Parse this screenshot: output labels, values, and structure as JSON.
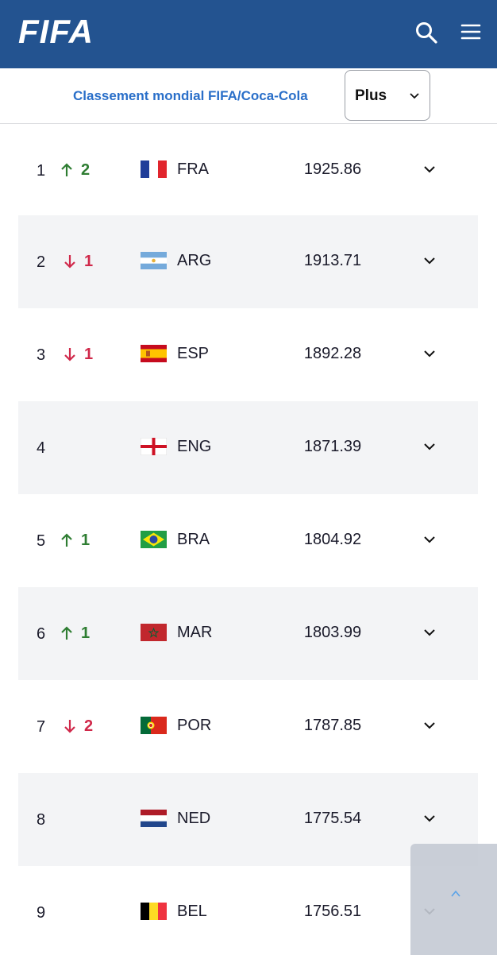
{
  "header": {
    "logo": "FIFA"
  },
  "nav": {
    "title": "Classement mondial FIFA/Coca-Cola",
    "dropdown": "Plus"
  },
  "rankings": [
    {
      "rank": 1,
      "trend": "up",
      "change": 2,
      "team": "FRA",
      "points": 1925.86
    },
    {
      "rank": 2,
      "trend": "down",
      "change": 1,
      "team": "ARG",
      "points": 1913.71
    },
    {
      "rank": 3,
      "trend": "down",
      "change": 1,
      "team": "ESP",
      "points": 1892.28
    },
    {
      "rank": 4,
      "team": "ENG",
      "points": 1871.39
    },
    {
      "rank": 5,
      "trend": "up",
      "change": 1,
      "team": "BRA",
      "points": 1804.92
    },
    {
      "rank": 6,
      "trend": "up",
      "change": 1,
      "team": "MAR",
      "points": 1803.99
    },
    {
      "rank": 7,
      "trend": "down",
      "change": 2,
      "team": "POR",
      "points": 1787.85
    },
    {
      "rank": 8,
      "team": "NED",
      "points": 1775.54
    },
    {
      "rank": 9,
      "team": "BEL",
      "points": 1756.51
    }
  ]
}
